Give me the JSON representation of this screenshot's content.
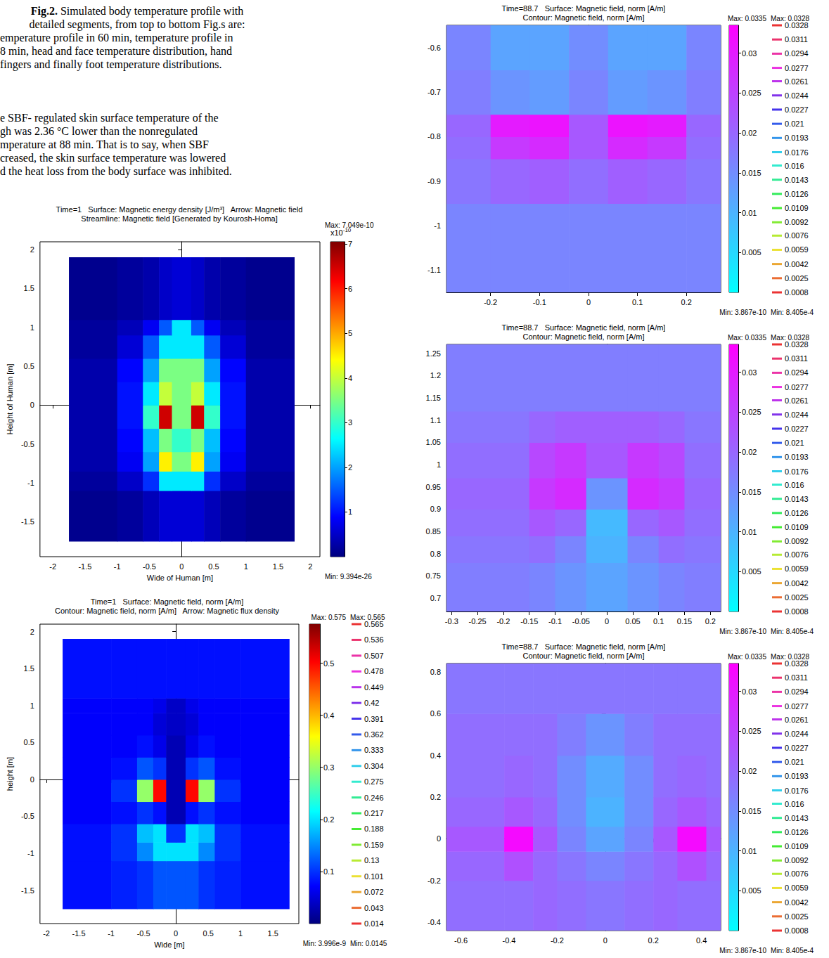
{
  "caption": {
    "label": "Fig.2.",
    "lines": [
      "Simulated body temperature profile with",
      "detailed segments, from top to bottom Fig.s are:",
      "emperature profile in 60 min, temperature profile in",
      "8 min, head and face temperature distribution, hand",
      "fingers and finally foot temperature distributions."
    ]
  },
  "paragraph": [
    "e SBF- regulated skin surface temperature of the",
    "gh was 2.36 °C lower than the nonregulated",
    "mperature at 88 min. That is to say, when SBF",
    "creased, the skin surface temperature was lowered",
    "d the heat loss from the body surface was inhibited."
  ],
  "chart_data": [
    {
      "type": "heatmap",
      "color": "jet",
      "title": [
        "Time=1   Surface: Magnetic energy density [J/m³]   Arrow: Magnetic field",
        "Streamline: Magnetic field [Generated by Kourosh-Homa]"
      ],
      "xlabel": "Wide of Human [m]",
      "ylabel": "Height of Human [m]",
      "xlim": [
        -2.2,
        2.15
      ],
      "xticks": [
        -2,
        -1.5,
        -1,
        -0.5,
        0,
        0.5,
        1,
        1.5,
        2
      ],
      "ylim": [
        -1.95,
        2.1
      ],
      "yticks": [
        -1.5,
        -1,
        -0.5,
        0,
        0.5,
        1,
        1.5,
        2
      ],
      "cells": {
        "x_edges": [
          -1.75,
          -1.0,
          -0.6,
          -0.35,
          -0.15,
          0.15,
          0.35,
          0.6,
          1.0,
          1.75
        ],
        "y_edges": [
          -1.75,
          -1.1,
          -0.85,
          -0.6,
          -0.3,
          0,
          0.3,
          0.6,
          0.9,
          1.1,
          1.9
        ],
        "values": [
          [
            1e-11,
            2e-11,
            4e-11,
            6e-11,
            6e-11,
            6e-11,
            4e-11,
            2e-11,
            1e-11
          ],
          [
            2e-11,
            5e-11,
            1.2e-10,
            2.5e-10,
            2.5e-10,
            2.5e-10,
            1.2e-10,
            5e-11,
            2e-11
          ],
          [
            3e-11,
            8e-11,
            2e-10,
            4.5e-10,
            3.5e-10,
            4.5e-10,
            2e-10,
            8e-11,
            3e-11
          ],
          [
            3e-11,
            9e-11,
            2.2e-10,
            3.5e-10,
            3e-10,
            3.5e-10,
            2.2e-10,
            9e-11,
            3e-11
          ],
          [
            3e-11,
            1e-10,
            3e-10,
            6.5e-10,
            3.5e-10,
            6.5e-10,
            3e-10,
            1e-10,
            3e-11
          ],
          [
            3e-11,
            1e-10,
            2.5e-10,
            4e-10,
            3.5e-10,
            4e-10,
            2.5e-10,
            1e-10,
            3e-11
          ],
          [
            3e-11,
            9e-11,
            2e-10,
            3.5e-10,
            3.5e-10,
            3.5e-10,
            2e-10,
            9e-11,
            3e-11
          ],
          [
            2e-11,
            6e-11,
            1.5e-10,
            2.5e-10,
            2.5e-10,
            2.5e-10,
            1.5e-10,
            6e-11,
            2e-11
          ],
          [
            2e-11,
            4e-11,
            8e-11,
            1.5e-10,
            2.5e-10,
            1.5e-10,
            8e-11,
            4e-11,
            2e-11
          ],
          [
            1e-11,
            2e-11,
            3e-11,
            5e-11,
            6e-11,
            5e-11,
            3e-11,
            2e-11,
            1e-11
          ]
        ]
      },
      "colorbar": {
        "range": [
          9.394e-26,
          7.049e-10
        ],
        "ticks": [
          {
            "value": 1e-10,
            "label": "1"
          },
          {
            "value": 2e-10,
            "label": "2"
          },
          {
            "value": 3e-10,
            "label": "3"
          },
          {
            "value": 4e-10,
            "label": "4"
          },
          {
            "value": 5e-10,
            "label": "5"
          },
          {
            "value": 6e-10,
            "label": "6"
          },
          {
            "value": 7e-10,
            "label": "7"
          }
        ],
        "multiplier": {
          "base": "x10",
          "exponent": "-10"
        },
        "max_label": "Max: 7.049e-10",
        "min_label": "Min: 9.394e-26"
      }
    },
    {
      "type": "heatmap",
      "color": "jet",
      "title": [
        "Time=1   Surface: Magnetic field, norm [A/m]",
        "Contour: Magnetic field, norm [A/m]   Arrow: Magnetic flux density"
      ],
      "xlabel": "Wide [m]",
      "ylabel": "height [m]",
      "xlim": [
        -2.1,
        1.9
      ],
      "xticks": [
        -2,
        -1.5,
        -1,
        -0.5,
        0,
        0.5,
        1,
        1.5
      ],
      "ylim": [
        -1.95,
        2.1
      ],
      "yticks": [
        -1.5,
        -1,
        -0.5,
        0,
        0.5,
        1,
        1.5,
        2
      ],
      "cells": {
        "x_edges": [
          -1.75,
          -1.0,
          -0.6,
          -0.35,
          -0.15,
          0.15,
          0.35,
          0.6,
          1.0,
          1.75
        ],
        "y_edges": [
          -1.75,
          -1.1,
          -0.85,
          -0.6,
          -0.3,
          0,
          0.3,
          0.6,
          0.9,
          1.1,
          1.9
        ],
        "values": [
          [
            0.08,
            0.09,
            0.1,
            0.12,
            0.12,
            0.12,
            0.1,
            0.09,
            0.08
          ],
          [
            0.08,
            0.1,
            0.15,
            0.2,
            0.2,
            0.2,
            0.15,
            0.1,
            0.08
          ],
          [
            0.08,
            0.1,
            0.18,
            0.2,
            0.1,
            0.2,
            0.18,
            0.1,
            0.08
          ],
          [
            0.07,
            0.08,
            0.1,
            0.08,
            0.03,
            0.08,
            0.1,
            0.08,
            0.07
          ],
          [
            0.07,
            0.1,
            0.3,
            0.5,
            0.03,
            0.5,
            0.3,
            0.1,
            0.07
          ],
          [
            0.07,
            0.08,
            0.12,
            0.1,
            0.03,
            0.1,
            0.12,
            0.08,
            0.07
          ],
          [
            0.07,
            0.07,
            0.08,
            0.06,
            0.03,
            0.06,
            0.08,
            0.07,
            0.07
          ],
          [
            0.07,
            0.07,
            0.07,
            0.05,
            0.04,
            0.05,
            0.07,
            0.07,
            0.07
          ],
          [
            0.07,
            0.07,
            0.07,
            0.06,
            0.04,
            0.06,
            0.07,
            0.07,
            0.07
          ],
          [
            0.08,
            0.08,
            0.08,
            0.08,
            0.08,
            0.08,
            0.08,
            0.08,
            0.08
          ]
        ]
      },
      "colorbar": {
        "range": [
          3.996e-09,
          0.575
        ],
        "ticks": [
          0.1,
          0.2,
          0.3,
          0.4,
          0.5
        ],
        "max_label": "Max: 0.575",
        "min_label": "Min: 3.996e-9"
      },
      "contours": {
        "levels": [
          0.565,
          0.536,
          0.507,
          0.478,
          0.449,
          0.42,
          0.391,
          0.362,
          0.333,
          0.304,
          0.275,
          0.246,
          0.217,
          0.188,
          0.159,
          0.13,
          0.101,
          0.072,
          0.043,
          0.014
        ],
        "max_label": "Max: 0.565",
        "min_label": "Min: 0.0145"
      }
    },
    {
      "type": "heatmap",
      "color": "cool",
      "title": [
        "Time=88.7   Surface: Magnetic field, norm [A/m]",
        "Contour: Magnetic field, norm [A/m]"
      ],
      "xlim": [
        -0.29,
        0.27
      ],
      "xticks": [
        -0.2,
        -0.1,
        0,
        0.1,
        0.2
      ],
      "ylim": [
        -1.15,
        -0.55
      ],
      "yticks": [
        -1.1,
        -1,
        -0.9,
        -0.8,
        -0.7,
        -0.6
      ],
      "cells": {
        "x_edges": [
          -0.29,
          -0.2,
          -0.12,
          -0.04,
          0.04,
          0.12,
          0.2,
          0.27
        ],
        "y_edges": [
          -1.15,
          -0.95,
          -0.85,
          -0.8,
          -0.75,
          -0.65,
          -0.55
        ],
        "values": [
          [
            0.016,
            0.016,
            0.016,
            0.016,
            0.016,
            0.016,
            0.016
          ],
          [
            0.018,
            0.02,
            0.021,
            0.019,
            0.021,
            0.02,
            0.018
          ],
          [
            0.019,
            0.026,
            0.028,
            0.022,
            0.028,
            0.026,
            0.019
          ],
          [
            0.02,
            0.03,
            0.031,
            0.022,
            0.031,
            0.03,
            0.02
          ],
          [
            0.017,
            0.014,
            0.013,
            0.016,
            0.013,
            0.014,
            0.017
          ],
          [
            0.016,
            0.012,
            0.012,
            0.015,
            0.012,
            0.012,
            0.016
          ]
        ]
      },
      "colorbar": {
        "range": [
          3.867e-10,
          0.0335
        ],
        "ticks": [
          0.005,
          0.01,
          0.015,
          0.02,
          0.025,
          0.03
        ],
        "max_label": "Max: 0.0335",
        "min_label": "Min: 3.867e-10"
      },
      "contours": {
        "levels": [
          0.0328,
          0.0311,
          0.0294,
          0.0277,
          0.0261,
          0.0244,
          0.0227,
          0.021,
          0.0193,
          0.0176,
          0.016,
          0.0143,
          0.0126,
          0.0109,
          0.0092,
          0.0076,
          0.0059,
          0.0042,
          0.0025,
          0.0008
        ],
        "max_label": "Max: 0.0328",
        "min_label": "Min: 8.405e-4"
      }
    },
    {
      "type": "heatmap",
      "color": "cool",
      "title": [
        "Time=88.7   Surface: Magnetic field, norm [A/m]",
        "Contour: Magnetic field, norm [A/m]"
      ],
      "xlim": [
        -0.31,
        0.22
      ],
      "xticks": [
        -0.3,
        -0.25,
        -0.2,
        -0.15,
        -0.1,
        -0.05,
        0,
        0.05,
        0.1,
        0.15,
        0.2
      ],
      "ylim": [
        0.67,
        1.27
      ],
      "yticks": [
        0.7,
        0.75,
        0.8,
        0.85,
        0.9,
        0.95,
        1,
        1.05,
        1.1,
        1.15,
        1.2,
        1.25
      ],
      "cells": {
        "x_edges": [
          -0.31,
          -0.15,
          -0.1,
          -0.04,
          0.04,
          0.1,
          0.15,
          0.22
        ],
        "y_edges": [
          0.67,
          0.78,
          0.84,
          0.9,
          0.97,
          1.05,
          1.12,
          1.27
        ],
        "values": [
          [
            0.017,
            0.016,
            0.014,
            0.012,
            0.014,
            0.016,
            0.017
          ],
          [
            0.018,
            0.019,
            0.016,
            0.01,
            0.016,
            0.019,
            0.018
          ],
          [
            0.019,
            0.022,
            0.02,
            0.009,
            0.02,
            0.022,
            0.019
          ],
          [
            0.02,
            0.026,
            0.028,
            0.014,
            0.028,
            0.026,
            0.02
          ],
          [
            0.019,
            0.024,
            0.026,
            0.022,
            0.026,
            0.024,
            0.019
          ],
          [
            0.018,
            0.02,
            0.021,
            0.021,
            0.021,
            0.02,
            0.018
          ],
          [
            0.017,
            0.017,
            0.017,
            0.017,
            0.017,
            0.017,
            0.017
          ]
        ]
      },
      "colorbar": {
        "range": [
          3.867e-10,
          0.0335
        ],
        "ticks": [
          0.005,
          0.01,
          0.015,
          0.02,
          0.025,
          0.03
        ],
        "max_label": "Max: 0.0335",
        "min_label": "Min: 3.867e-10"
      },
      "contours": {
        "levels": [
          0.0328,
          0.0311,
          0.0294,
          0.0277,
          0.0261,
          0.0244,
          0.0227,
          0.021,
          0.0193,
          0.0176,
          0.016,
          0.0143,
          0.0126,
          0.0109,
          0.0092,
          0.0076,
          0.0059,
          0.0042,
          0.0025,
          0.0008
        ],
        "max_label": "Max: 0.0328",
        "min_label": "Min: 8.405e-4"
      }
    },
    {
      "type": "heatmap",
      "color": "cool",
      "title": [
        "Time=88.7   Surface: Magnetic field, norm [A/m]",
        "Contour: Magnetic field, norm [A/m]"
      ],
      "xlim": [
        -0.66,
        0.48
      ],
      "xticks": [
        -0.6,
        -0.4,
        -0.2,
        0,
        0.2,
        0.4
      ],
      "ylim": [
        -0.44,
        0.84
      ],
      "yticks": [
        -0.4,
        -0.2,
        0,
        0.2,
        0.4,
        0.6,
        0.8
      ],
      "cells": {
        "x_edges": [
          -0.66,
          -0.42,
          -0.3,
          -0.2,
          -0.08,
          0.08,
          0.2,
          0.3,
          0.42,
          0.48
        ],
        "y_edges": [
          -0.44,
          -0.2,
          -0.06,
          0.06,
          0.2,
          0.4,
          0.6,
          0.84
        ],
        "values": [
          [
            0.019,
            0.019,
            0.02,
            0.019,
            0.018,
            0.019,
            0.02,
            0.019,
            0.019
          ],
          [
            0.02,
            0.023,
            0.02,
            0.018,
            0.016,
            0.018,
            0.02,
            0.023,
            0.02
          ],
          [
            0.022,
            0.032,
            0.022,
            0.016,
            0.012,
            0.016,
            0.022,
            0.032,
            0.022
          ],
          [
            0.02,
            0.022,
            0.02,
            0.015,
            0.01,
            0.015,
            0.02,
            0.022,
            0.02
          ],
          [
            0.019,
            0.02,
            0.019,
            0.015,
            0.011,
            0.015,
            0.019,
            0.02,
            0.019
          ],
          [
            0.019,
            0.019,
            0.019,
            0.017,
            0.014,
            0.017,
            0.019,
            0.019,
            0.019
          ],
          [
            0.018,
            0.018,
            0.018,
            0.018,
            0.018,
            0.018,
            0.018,
            0.018,
            0.018
          ]
        ]
      },
      "colorbar": {
        "range": [
          3.867e-10,
          0.0335
        ],
        "ticks": [
          0.005,
          0.01,
          0.015,
          0.02,
          0.025,
          0.03
        ],
        "max_label": "Max: 0.0335",
        "min_label": "Min: 3.867e-10"
      },
      "contours": {
        "levels": [
          0.0328,
          0.0311,
          0.0294,
          0.0277,
          0.0261,
          0.0244,
          0.0227,
          0.021,
          0.0193,
          0.0176,
          0.016,
          0.0143,
          0.0126,
          0.0109,
          0.0092,
          0.0076,
          0.0059,
          0.0042,
          0.0025,
          0.0008
        ],
        "max_label": "Max: 0.0328",
        "min_label": "Min: 8.405e-4"
      }
    }
  ]
}
